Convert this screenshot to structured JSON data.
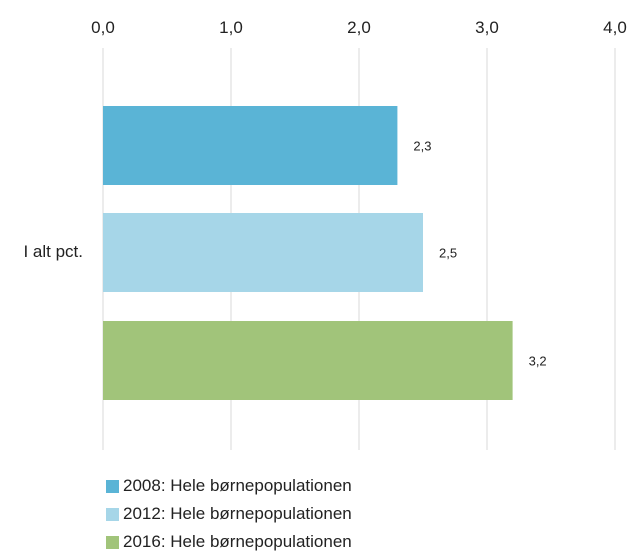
{
  "chart_data": {
    "type": "bar",
    "orientation": "horizontal",
    "categories": [
      "I alt pct."
    ],
    "series": [
      {
        "name": "2008: Hele børnepopulationen",
        "values": [
          2.3
        ],
        "labels": [
          "2,3"
        ],
        "color": "#5ab4d6"
      },
      {
        "name": "2012: Hele børnepopulationen",
        "values": [
          2.5
        ],
        "labels": [
          "2,5"
        ],
        "color": "#a6d6e8"
      },
      {
        "name": "2016: Hele børnepopulationen",
        "values": [
          3.2
        ],
        "labels": [
          "3,2"
        ],
        "color": "#a1c47a"
      }
    ],
    "xlim": [
      0,
      4
    ],
    "ticks": [
      0,
      1,
      2,
      3,
      4
    ],
    "tick_labels": [
      "0,0",
      "1,0",
      "2,0",
      "3,0",
      "4,0"
    ],
    "xaxis_position": "top",
    "grid": true,
    "legend_position": "bottom"
  }
}
